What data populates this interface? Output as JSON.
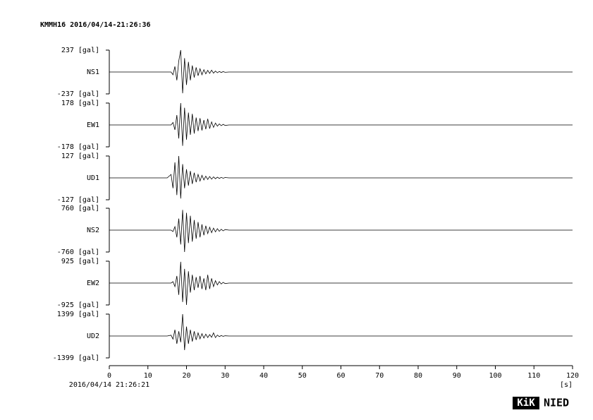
{
  "chart_data": [
    {
      "type": "line",
      "title": "KMMH16 2016/04/14-21:26:36",
      "ylabel": "NS1",
      "color": "#000000",
      "x": [
        0,
        5,
        10,
        15,
        16,
        16.5,
        17,
        17.5,
        18,
        18.5,
        19,
        19.5,
        20,
        20.5,
        21,
        21.5,
        22,
        22.5,
        23,
        23.5,
        24,
        24.5,
        25,
        25.5,
        26,
        26.5,
        27,
        27.5,
        28,
        28.5,
        29,
        29.5,
        30,
        31,
        35,
        40,
        45,
        50,
        55,
        60,
        65,
        70,
        75,
        80,
        85,
        90,
        95,
        100,
        105,
        110,
        115,
        120
      ],
      "values": [
        0,
        0,
        0,
        0,
        0,
        -30,
        60,
        -90,
        120,
        237,
        -230,
        150,
        -140,
        110,
        -90,
        70,
        -60,
        50,
        -40,
        35,
        -30,
        25,
        -20,
        18,
        -15,
        20,
        -12,
        10,
        -8,
        6,
        -5,
        4,
        -3,
        0,
        0,
        0,
        0,
        0,
        0,
        0,
        0,
        0,
        0,
        0,
        0,
        0,
        0,
        0,
        0,
        0,
        0,
        0
      ],
      "xlim": [
        0,
        120
      ],
      "ylim": [
        -237,
        237
      ],
      "yticks": [
        {
          "value": 237,
          "label": "237 [gal]"
        },
        {
          "value": -237,
          "label": "-237 [gal]"
        }
      ]
    },
    {
      "type": "line",
      "ylabel": "EW1",
      "color": "#000000",
      "x": [
        0,
        5,
        10,
        15,
        16,
        16.5,
        17,
        17.5,
        18,
        18.5,
        19,
        19.5,
        20,
        20.5,
        21,
        21.5,
        22,
        22.5,
        23,
        23.5,
        24,
        24.5,
        25,
        25.5,
        26,
        26.5,
        27,
        27.5,
        28,
        28.5,
        29,
        29.5,
        30,
        31,
        35,
        40,
        45,
        50,
        55,
        60,
        65,
        70,
        75,
        80,
        85,
        90,
        95,
        100,
        105,
        110,
        115,
        120
      ],
      "values": [
        0,
        0,
        0,
        0,
        0,
        20,
        -40,
        80,
        -110,
        178,
        -170,
        140,
        -120,
        100,
        -80,
        90,
        -70,
        60,
        -50,
        55,
        -45,
        40,
        -35,
        50,
        -30,
        25,
        -20,
        15,
        -10,
        8,
        -6,
        5,
        -4,
        0,
        0,
        0,
        0,
        0,
        0,
        0,
        0,
        0,
        0,
        0,
        0,
        0,
        0,
        0,
        0,
        0,
        0,
        0
      ],
      "xlim": [
        0,
        120
      ],
      "ylim": [
        -178,
        178
      ],
      "yticks": [
        {
          "value": 178,
          "label": "178 [gal]"
        },
        {
          "value": -178,
          "label": "-178 [gal]"
        }
      ]
    },
    {
      "type": "line",
      "ylabel": "UD1",
      "color": "#000000",
      "x": [
        0,
        5,
        10,
        15,
        16,
        16.5,
        17,
        17.5,
        18,
        18.5,
        19,
        19.5,
        20,
        20.5,
        21,
        21.5,
        22,
        22.5,
        23,
        23.5,
        24,
        24.5,
        25,
        25.5,
        26,
        26.5,
        27,
        27.5,
        28,
        28.5,
        29,
        29.5,
        30,
        31,
        35,
        40,
        45,
        50,
        55,
        60,
        65,
        70,
        75,
        80,
        85,
        90,
        95,
        100,
        105,
        110,
        115,
        120
      ],
      "values": [
        0,
        0,
        0,
        0,
        20,
        -60,
        90,
        -100,
        127,
        -120,
        80,
        -60,
        50,
        -45,
        40,
        -35,
        30,
        -25,
        20,
        -18,
        15,
        -12,
        10,
        -9,
        8,
        -7,
        6,
        -5,
        4,
        -3,
        3,
        -2,
        2,
        0,
        0,
        0,
        0,
        0,
        0,
        0,
        0,
        0,
        0,
        0,
        0,
        0,
        0,
        0,
        0,
        0,
        0,
        0
      ],
      "xlim": [
        0,
        120
      ],
      "ylim": [
        -127,
        127
      ],
      "yticks": [
        {
          "value": 127,
          "label": "127 [gal]"
        },
        {
          "value": -127,
          "label": "-127 [gal]"
        }
      ]
    },
    {
      "type": "line",
      "ylabel": "NS2",
      "color": "#000000",
      "x": [
        0,
        5,
        10,
        15,
        16,
        16.5,
        17,
        17.5,
        18,
        18.5,
        19,
        19.5,
        20,
        20.5,
        21,
        21.5,
        22,
        22.5,
        23,
        23.5,
        24,
        24.5,
        25,
        25.5,
        26,
        26.5,
        27,
        27.5,
        28,
        28.5,
        29,
        29.5,
        30,
        31,
        35,
        40,
        45,
        50,
        55,
        60,
        65,
        70,
        75,
        80,
        85,
        90,
        95,
        100,
        105,
        110,
        115,
        120
      ],
      "values": [
        0,
        0,
        0,
        0,
        0,
        -50,
        120,
        -250,
        400,
        -500,
        700,
        -760,
        600,
        -450,
        500,
        -400,
        350,
        -300,
        280,
        -250,
        200,
        -180,
        150,
        -120,
        100,
        -90,
        70,
        -60,
        50,
        -40,
        30,
        -25,
        20,
        0,
        0,
        0,
        0,
        0,
        0,
        0,
        0,
        0,
        0,
        0,
        0,
        0,
        0,
        0,
        0,
        0,
        0,
        0
      ],
      "xlim": [
        0,
        120
      ],
      "ylim": [
        -760,
        760
      ],
      "yticks": [
        {
          "value": 760,
          "label": "760 [gal]"
        },
        {
          "value": -760,
          "label": "-760 [gal]"
        }
      ]
    },
    {
      "type": "line",
      "ylabel": "EW2",
      "color": "#000000",
      "x": [
        0,
        5,
        10,
        15,
        16,
        16.5,
        17,
        17.5,
        18,
        18.5,
        19,
        19.5,
        20,
        20.5,
        21,
        21.5,
        22,
        22.5,
        23,
        23.5,
        24,
        24.5,
        25,
        25.5,
        26,
        26.5,
        27,
        27.5,
        28,
        28.5,
        29,
        29.5,
        30,
        31,
        35,
        40,
        45,
        50,
        55,
        60,
        65,
        70,
        75,
        80,
        85,
        90,
        95,
        100,
        105,
        110,
        115,
        120
      ],
      "values": [
        0,
        0,
        0,
        0,
        0,
        60,
        -150,
        300,
        -500,
        900,
        -800,
        600,
        -925,
        500,
        -400,
        350,
        -300,
        250,
        -200,
        300,
        -250,
        200,
        -300,
        350,
        -250,
        200,
        -150,
        100,
        -80,
        60,
        -40,
        30,
        -20,
        0,
        0,
        0,
        0,
        0,
        0,
        0,
        0,
        0,
        0,
        0,
        0,
        0,
        0,
        0,
        0,
        0,
        0,
        0
      ],
      "xlim": [
        0,
        120
      ],
      "ylim": [
        -925,
        925
      ],
      "yticks": [
        {
          "value": 925,
          "label": "925 [gal]"
        },
        {
          "value": -925,
          "label": "-925 [gal]"
        }
      ]
    },
    {
      "type": "line",
      "ylabel": "UD2",
      "color": "#000000",
      "x": [
        0,
        5,
        10,
        15,
        16,
        16.5,
        17,
        17.5,
        18,
        18.5,
        19,
        19.5,
        20,
        20.5,
        21,
        21.5,
        22,
        22.5,
        23,
        23.5,
        24,
        24.5,
        25,
        25.5,
        26,
        26.5,
        27,
        27.5,
        28,
        28.5,
        29,
        29.5,
        30,
        31,
        35,
        40,
        45,
        50,
        55,
        60,
        65,
        70,
        75,
        80,
        85,
        90,
        95,
        100,
        105,
        110,
        115,
        120
      ],
      "values": [
        0,
        0,
        0,
        0,
        50,
        -200,
        400,
        -500,
        300,
        -400,
        1399,
        -900,
        600,
        -500,
        400,
        -350,
        300,
        -250,
        200,
        -180,
        150,
        -130,
        120,
        -100,
        90,
        -80,
        200,
        -100,
        60,
        -40,
        30,
        -20,
        15,
        0,
        0,
        0,
        0,
        0,
        0,
        0,
        0,
        0,
        0,
        0,
        0,
        0,
        0,
        0,
        0,
        0,
        0,
        0
      ],
      "xlim": [
        0,
        120
      ],
      "ylim": [
        -1399,
        1399
      ],
      "yticks": [
        {
          "value": 1399,
          "label": "1399 [gal]"
        },
        {
          "value": -1399,
          "label": "-1399 [gal]"
        }
      ],
      "xticks": [
        0,
        10,
        20,
        30,
        40,
        50,
        60,
        70,
        80,
        90,
        100,
        110,
        120
      ],
      "xlabel": "[s]",
      "start_time": "2016/04/14 21:26:21"
    }
  ],
  "logo": {
    "left": "KiK",
    "right": "NIED"
  }
}
